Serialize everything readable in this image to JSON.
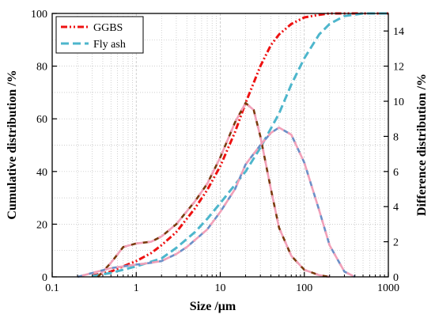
{
  "chart_data": {
    "type": "line",
    "xlabel": "Size /μm",
    "ylabel_left": "Cumulative distribution /%",
    "ylabel_right": "Difference distribution /%",
    "x_scale": "log",
    "xlim": [
      0.1,
      1000
    ],
    "ylim_left": [
      0,
      100
    ],
    "ylim_right": [
      0,
      15
    ],
    "x_ticks": [
      "0.1",
      "1",
      "10",
      "100",
      "1000"
    ],
    "y_left_ticks": [
      "0",
      "20",
      "40",
      "60",
      "80",
      "100"
    ],
    "y_right_ticks": [
      "0",
      "2",
      "4",
      "6",
      "8",
      "10",
      "12",
      "14"
    ],
    "grid": true,
    "legend_position": "top-left",
    "legend": [
      {
        "label": "GGBS",
        "color": "#ee1111"
      },
      {
        "label": "Fly ash",
        "color": "#4db6cc"
      }
    ],
    "series": [
      {
        "name": "GGBS",
        "axis": "left",
        "color": "#ee1111",
        "x": [
          0.3,
          0.5,
          0.7,
          1,
          1.5,
          2,
          3,
          5,
          7,
          10,
          15,
          20,
          30,
          40,
          50,
          70,
          100,
          150,
          200,
          500,
          1000
        ],
        "y": [
          0.5,
          2,
          4,
          6,
          9,
          12,
          17,
          26,
          33,
          42,
          55,
          66,
          80,
          88,
          92,
          96,
          98.5,
          99.5,
          100,
          100,
          100
        ]
      },
      {
        "name": "Fly ash",
        "axis": "left",
        "color": "#4db6cc",
        "x": [
          0.3,
          0.5,
          1,
          2,
          3,
          5,
          7,
          10,
          15,
          20,
          30,
          50,
          70,
          100,
          150,
          200,
          300,
          500,
          1000
        ],
        "y": [
          0.3,
          1.5,
          4,
          7,
          11,
          17,
          22,
          28,
          35,
          40,
          49,
          62,
          73,
          83,
          92,
          96,
          99,
          100,
          100
        ]
      },
      {
        "name": "GGBS difference",
        "axis": "right",
        "colors": [
          "#7a3a0c",
          "#f2a0b8"
        ],
        "x": [
          0.35,
          0.5,
          0.7,
          1,
          1.5,
          2,
          3,
          5,
          7,
          10,
          15,
          20,
          25,
          30,
          40,
          50,
          70,
          100,
          150,
          200
        ],
        "y": [
          0,
          0.8,
          1.7,
          1.9,
          2.0,
          2.3,
          3.0,
          4.3,
          5.3,
          6.8,
          8.8,
          9.9,
          9.5,
          8.0,
          5.0,
          2.8,
          1.2,
          0.4,
          0.1,
          0
        ]
      },
      {
        "name": "Fly ash difference",
        "axis": "right",
        "colors": [
          "#6b8fc7",
          "#f2a0b8"
        ],
        "x": [
          0.2,
          0.5,
          1,
          1.5,
          2,
          3,
          4,
          5,
          7,
          10,
          15,
          20,
          30,
          40,
          50,
          70,
          100,
          150,
          200,
          300,
          400
        ],
        "y": [
          0,
          0.5,
          0.7,
          0.8,
          0.9,
          1.3,
          1.7,
          2.1,
          2.7,
          3.7,
          5.0,
          6.4,
          7.5,
          8.2,
          8.5,
          8.1,
          6.5,
          3.8,
          1.8,
          0.3,
          0
        ]
      }
    ]
  }
}
